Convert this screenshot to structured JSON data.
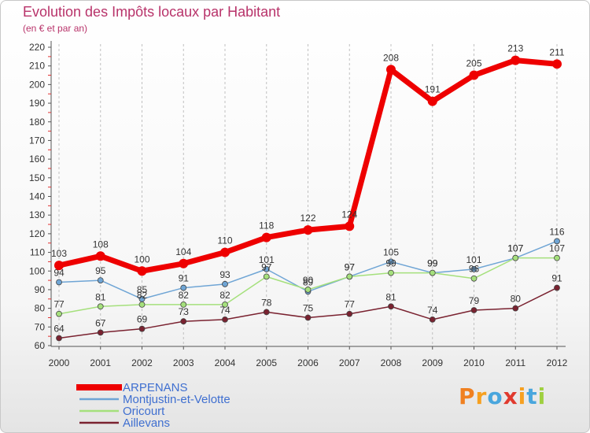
{
  "header": {
    "title": "Evolution des Impôts locaux par Habitant",
    "subtitle": "(en € et par an)"
  },
  "logo": {
    "text": "Proxiti"
  },
  "chart_data": {
    "type": "line",
    "title": "Evolution des Impôts locaux par Habitant",
    "subtitle": "(en € et par an)",
    "xlabel": "",
    "ylabel": "",
    "x": [
      "2000",
      "2001",
      "2002",
      "2003",
      "2004",
      "2005",
      "2006",
      "2007",
      "2008",
      "2009",
      "2010",
      "2011",
      "2012"
    ],
    "ylim": [
      60,
      220
    ],
    "yticks": [
      60,
      70,
      80,
      90,
      100,
      110,
      120,
      130,
      140,
      150,
      160,
      170,
      180,
      190,
      200,
      210,
      220
    ],
    "grid": "vertical dashed",
    "legend_position": "bottom-left",
    "series": [
      {
        "name": "ARPENANS",
        "color": "#ee0000",
        "emphasis": "thick",
        "values": [
          103,
          108,
          100,
          104,
          110,
          118,
          122,
          124,
          208,
          191,
          205,
          213,
          211
        ]
      },
      {
        "name": "Montjustin-et-Velotte",
        "color": "#6fa5d5",
        "emphasis": "normal",
        "values": [
          94,
          95,
          85,
          91,
          93,
          101,
          89,
          97,
          105,
          99,
          101,
          107,
          116
        ]
      },
      {
        "name": "Oricourt",
        "color": "#a5e07c",
        "emphasis": "normal",
        "values": [
          77,
          81,
          82,
          82,
          82,
          97,
          90,
          97,
          99,
          99,
          96,
          107,
          107
        ]
      },
      {
        "name": "Aillevans",
        "color": "#7a2230",
        "emphasis": "normal",
        "values": [
          64,
          67,
          69,
          73,
          74,
          78,
          75,
          77,
          81,
          74,
          79,
          80,
          91
        ]
      }
    ]
  }
}
